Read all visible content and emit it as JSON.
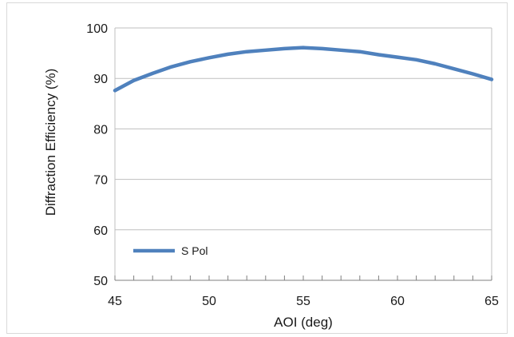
{
  "chart_data": {
    "type": "line",
    "xlabel": "AOI (deg)",
    "ylabel": "Diffraction Efficiency (%)",
    "xlim": [
      45,
      65
    ],
    "ylim": [
      50,
      100
    ],
    "x_ticks": [
      45,
      50,
      55,
      60,
      65
    ],
    "y_ticks": [
      50,
      60,
      70,
      80,
      90,
      100
    ],
    "x_minor_step": 1,
    "grid": {
      "horizontal": true,
      "vertical": false
    },
    "legend_position": "bottom-left",
    "series": [
      {
        "name": "S Pol",
        "color": "#4f81bd",
        "x": [
          45,
          46,
          47,
          48,
          49,
          50,
          51,
          52,
          53,
          54,
          55,
          56,
          57,
          58,
          59,
          60,
          61,
          62,
          63,
          64,
          65
        ],
        "y": [
          87.6,
          89.6,
          91.0,
          92.3,
          93.3,
          94.1,
          94.8,
          95.3,
          95.6,
          95.9,
          96.1,
          95.9,
          95.6,
          95.3,
          94.7,
          94.2,
          93.7,
          92.9,
          91.9,
          90.9,
          89.8
        ]
      }
    ]
  }
}
